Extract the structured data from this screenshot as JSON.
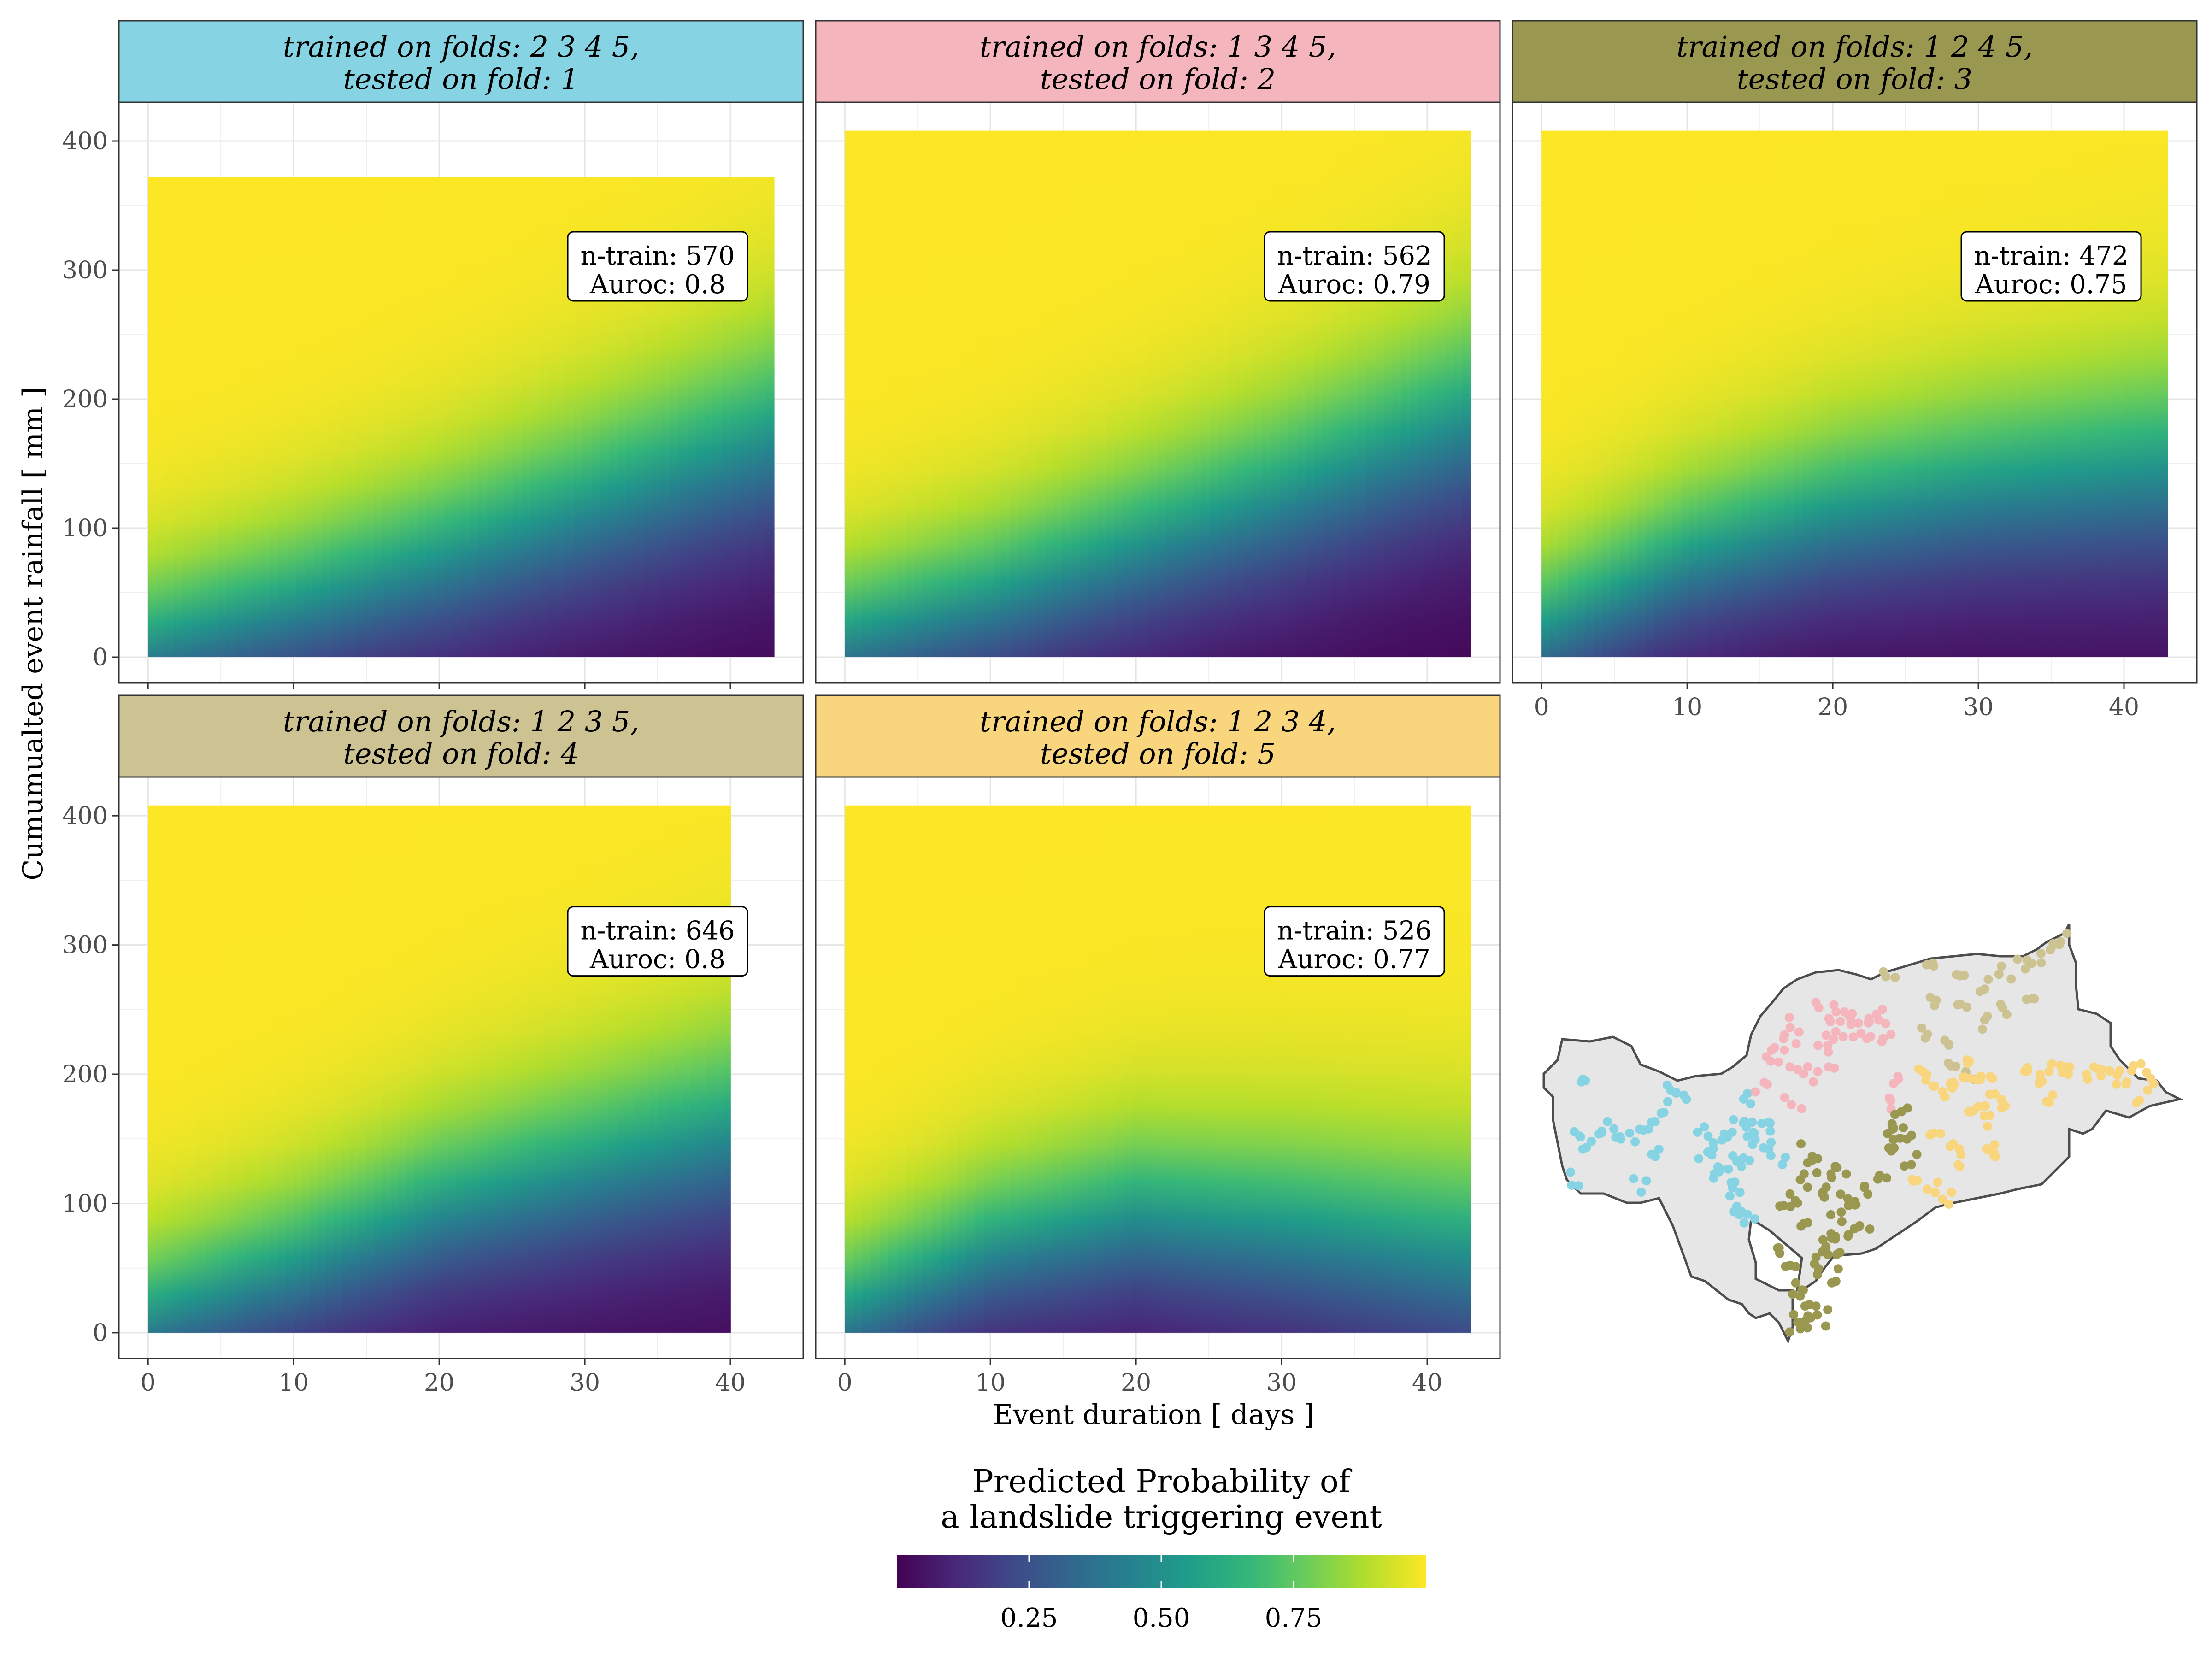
{
  "chart_data": {
    "type": "heatmap",
    "xlabel": "Event duration [ days ]",
    "ylabel": "Cumumualted event rainfall [ mm ]",
    "x_ticks": [
      0,
      10,
      20,
      30,
      40
    ],
    "y_ticks": [
      0,
      100,
      200,
      300,
      400
    ],
    "xlim": [
      -2,
      45
    ],
    "ylim": [
      -20,
      430
    ],
    "panels": [
      {
        "strip_line1": "trained on folds: 2 3 4 5,",
        "strip_line2": "tested on fold: 1",
        "strip_color": "#86D4E3",
        "n_train_text": "n-train: 570",
        "auroc_text": "Auroc: 0.8",
        "n_train": 570,
        "auroc": 0.8,
        "grid_x_max": 43,
        "grid_y_max": 372,
        "p50_boundary": {
          "duration_days": [
            0,
            10,
            20,
            30,
            43
          ],
          "rainfall_mm": [
            10,
            40,
            75,
            115,
            170
          ]
        }
      },
      {
        "strip_line1": "trained on folds: 1 3 4 5,",
        "strip_line2": "tested on fold: 2",
        "strip_color": "#F5B5BD",
        "n_train_text": "n-train: 562",
        "auroc_text": "Auroc: 0.79",
        "n_train": 562,
        "auroc": 0.79,
        "grid_x_max": 43,
        "grid_y_max": 408,
        "p50_boundary": {
          "duration_days": [
            0,
            10,
            20,
            30,
            43
          ],
          "rainfall_mm": [
            15,
            45,
            85,
            125,
            185
          ]
        }
      },
      {
        "strip_line1": "trained on folds: 1 2 4 5,",
        "strip_line2": "tested on fold: 3",
        "strip_color": "#9A9750",
        "n_train_text": "n-train: 472",
        "auroc_text": "Auroc: 0.75",
        "n_train": 472,
        "auroc": 0.75,
        "grid_x_max": 43,
        "grid_y_max": 408,
        "p50_boundary": {
          "duration_days": [
            0,
            10,
            20,
            30,
            43
          ],
          "rainfall_mm": [
            20,
            75,
            110,
            130,
            145
          ]
        }
      },
      {
        "strip_line1": "trained on folds: 1 2 3 5,",
        "strip_line2": "tested on fold: 4",
        "strip_color": "#CCC292",
        "n_train_text": "n-train: 646",
        "auroc_text": "Auroc: 0.8",
        "n_train": 646,
        "auroc": 0.8,
        "grid_x_max": 40,
        "grid_y_max": 408,
        "p50_boundary": {
          "duration_days": [
            0,
            10,
            20,
            30,
            40
          ],
          "rainfall_mm": [
            12,
            50,
            95,
            125,
            155
          ]
        }
      },
      {
        "strip_line1": "trained on folds: 1 2 3 4,",
        "strip_line2": "tested on fold: 5",
        "strip_color": "#F9D67E",
        "n_train_text": "n-train: 526",
        "auroc_text": "Auroc: 0.77",
        "n_train": 526,
        "auroc": 0.77,
        "grid_x_max": 43,
        "grid_y_max": 408,
        "p50_boundary": {
          "duration_days": [
            0,
            10,
            20,
            30,
            43
          ],
          "rainfall_mm": [
            15,
            65,
            90,
            80,
            60
          ]
        }
      }
    ],
    "legend": {
      "title_line1": "Predicted Probability of",
      "title_line2": "a landslide triggering event",
      "ticks": [
        "0.25",
        "0.50",
        "0.75"
      ],
      "tick_values": [
        0.25,
        0.5,
        0.75
      ],
      "range": [
        0,
        1
      ],
      "colormap": "viridis",
      "placement": "bottom"
    },
    "inset_map": {
      "fill": "#E6E6E6",
      "outline": "#4D4D4D",
      "fold_colors": [
        "#86D4E3",
        "#F5B5BD",
        "#9A9750",
        "#CCC292",
        "#F9D67E"
      ]
    }
  }
}
